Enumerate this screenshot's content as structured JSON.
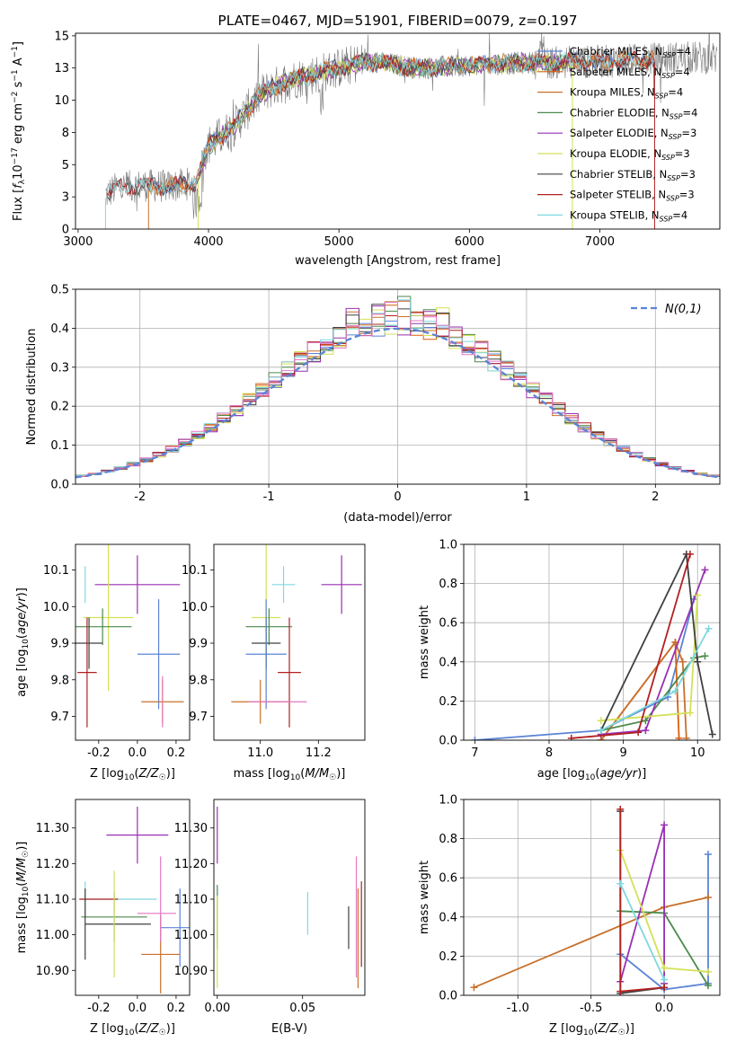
{
  "colors": {
    "Chabrier MILES": "#5b84d6",
    "Salpeter MILES": "#d95f0e",
    "Kroupa MILES": "#c8702a",
    "Chabrier ELODIE": "#4c8a4c",
    "Salpeter ELODIE": "#9a2fb5",
    "Kroupa ELODIE": "#d4e157",
    "Chabrier STELIB": "#404040",
    "Salpeter STELIB": "#b22020",
    "Kroupa STELIB": "#7fd8e0",
    "pink": "#e377c2",
    "gaussian": "#5b84d6"
  },
  "chart_data": [
    {
      "id": "spectrum",
      "type": "line",
      "title": "PLATE=0467, MJD=51901, FIBERID=0079, z=0.197",
      "xlabel": "wavelength [Angstrom, rest frame]",
      "ylabel": "Flux [f_λ 10^-17 erg cm^-2 s^-1 A^-1]",
      "xlim": [
        2980,
        7920
      ],
      "ylim": [
        0,
        15.2
      ],
      "xticks": [
        3000,
        4000,
        5000,
        6000,
        7000
      ],
      "yticks": [
        0.0,
        2.5,
        5.0,
        7.5,
        10.0,
        12.5,
        15.0
      ],
      "legend_position": "top-right",
      "legend": [
        {
          "name": "Chabrier MILES",
          "nssp": "4"
        },
        {
          "name": "Salpeter MILES",
          "nssp": "4"
        },
        {
          "name": "Kroupa MILES",
          "nssp": "4"
        },
        {
          "name": "Chabrier ELODIE",
          "nssp": "4"
        },
        {
          "name": "Salpeter ELODIE",
          "nssp": "3"
        },
        {
          "name": "Kroupa ELODIE",
          "nssp": "3"
        },
        {
          "name": "Chabrier STELIB",
          "nssp": "3"
        },
        {
          "name": "Salpeter STELIB",
          "nssp": "3"
        },
        {
          "name": "Kroupa STELIB",
          "nssp": "4"
        }
      ],
      "continuum": {
        "x": [
          3200,
          3300,
          3500,
          3700,
          3900,
          4000,
          4200,
          4400,
          4600,
          4800,
          5000,
          5200,
          5400,
          5600,
          5800,
          6000,
          6200,
          6400,
          6600,
          6800,
          7000,
          7200,
          7400,
          7600,
          7900
        ],
        "y": [
          2.6,
          3.2,
          3.4,
          3.3,
          3.6,
          6.5,
          8.0,
          10.5,
          11.5,
          12.0,
          12.5,
          13.0,
          12.8,
          12.5,
          12.6,
          12.7,
          12.8,
          12.9,
          12.9,
          13.0,
          13.0,
          13.1,
          13.2,
          13.3,
          13.3
        ]
      }
    },
    {
      "id": "residuals",
      "type": "line",
      "xlabel": "(data-model)/error",
      "ylabel": "Normed distribution",
      "xlim": [
        -2.5,
        2.5
      ],
      "ylim": [
        0,
        0.5
      ],
      "xticks": [
        -2,
        -1,
        0,
        1,
        2
      ],
      "yticks": [
        0.0,
        0.1,
        0.2,
        0.3,
        0.4,
        0.5
      ],
      "grid": true,
      "legend_position": "top-right",
      "gaussian_label": "N(0,1)",
      "bin_width": 0.1
    },
    {
      "id": "age_vs_Z",
      "type": "scatter",
      "xlabel": "Z [log10(Z/Z☉)]",
      "ylabel": "age  [log10(age/yr)]",
      "xlim": [
        -0.32,
        0.27
      ],
      "ylim": [
        9.635,
        10.17
      ],
      "xticks": [
        -0.2,
        0.0,
        0.2
      ],
      "yticks": [
        9.7,
        9.8,
        9.9,
        10.0,
        10.1
      ],
      "points": [
        {
          "series": "Kroupa STELIB",
          "x": -0.27,
          "y": 10.06,
          "xerr": 0.0,
          "yerr": 0.05
        },
        {
          "series": "Salpeter ELODIE",
          "x": 0.0,
          "y": 10.06,
          "xerr": 0.22,
          "yerr": 0.08
        },
        {
          "series": "Kroupa ELODIE",
          "x": -0.15,
          "y": 9.97,
          "xerr": 0.13,
          "yerr": 0.2
        },
        {
          "series": "Chabrier ELODIE",
          "x": -0.18,
          "y": 9.945,
          "xerr": 0.15,
          "yerr": 0.05
        },
        {
          "series": "Chabrier STELIB",
          "x": -0.25,
          "y": 9.9,
          "xerr": 0.07,
          "yerr": 0.07
        },
        {
          "series": "Chabrier MILES",
          "x": 0.11,
          "y": 9.87,
          "xerr": 0.11,
          "yerr": 0.15
        },
        {
          "series": "Salpeter STELIB",
          "x": -0.26,
          "y": 9.82,
          "xerr": 0.05,
          "yerr": 0.15
        },
        {
          "series": "Kroupa MILES",
          "x": 0.13,
          "y": 9.74,
          "xerr": 0.11,
          "yerr": 0.06
        },
        {
          "series": "pink",
          "x": 0.13,
          "y": 9.74,
          "xerr": 0.0,
          "yerr": 0.07
        }
      ]
    },
    {
      "id": "age_vs_mass",
      "type": "scatter",
      "xlabel": "mass [log10(M/M☉)]",
      "ylabel": "",
      "xlim": [
        10.84,
        11.36
      ],
      "ylim": [
        9.635,
        10.17
      ],
      "xticks": [
        11.0,
        11.2
      ],
      "yticks": [
        9.7,
        9.8,
        9.9,
        10.0,
        10.1
      ],
      "points": [
        {
          "series": "Kroupa STELIB",
          "x": 11.08,
          "y": 10.06,
          "xerr": 0.04,
          "yerr": 0.05
        },
        {
          "series": "Salpeter ELODIE",
          "x": 11.28,
          "y": 10.06,
          "xerr": 0.07,
          "yerr": 0.08
        },
        {
          "series": "Kroupa ELODIE",
          "x": 11.02,
          "y": 9.97,
          "xerr": 0.05,
          "yerr": 0.2
        },
        {
          "series": "Chabrier ELODIE",
          "x": 11.03,
          "y": 9.945,
          "xerr": 0.08,
          "yerr": 0.05
        },
        {
          "series": "Chabrier STELIB",
          "x": 11.02,
          "y": 9.9,
          "xerr": 0.05,
          "yerr": 0.07
        },
        {
          "series": "Chabrier MILES",
          "x": 11.02,
          "y": 9.87,
          "xerr": 0.07,
          "yerr": 0.15
        },
        {
          "series": "Salpeter STELIB",
          "x": 11.1,
          "y": 9.82,
          "xerr": 0.04,
          "yerr": 0.15
        },
        {
          "series": "Kroupa MILES",
          "x": 11.0,
          "y": 9.74,
          "xerr": 0.1,
          "yerr": 0.06
        },
        {
          "series": "pink",
          "x": 11.06,
          "y": 9.74,
          "xerr": 0.1,
          "yerr": 0.0
        }
      ]
    },
    {
      "id": "weight_vs_age",
      "type": "line",
      "xlabel": "age  [log10(age/yr)]",
      "ylabel": "mass weight",
      "xlim": [
        6.85,
        10.3
      ],
      "ylim": [
        0,
        1.0
      ],
      "xticks": [
        7,
        8,
        9,
        10
      ],
      "yticks": [
        0.0,
        0.2,
        0.4,
        0.6,
        0.8,
        1.0
      ],
      "grid": true,
      "series": [
        {
          "name": "Chabrier MILES",
          "x": [
            7.0,
            8.7,
            9.6,
            9.95
          ],
          "y": [
            0.0,
            0.05,
            0.22,
            0.72
          ]
        },
        {
          "name": "Salpeter MILES",
          "x": [
            8.7,
            9.7,
            9.75
          ],
          "y": [
            0.0,
            0.5,
            0.01
          ]
        },
        {
          "name": "Kroupa MILES",
          "x": [
            8.7,
            9.7,
            9.8,
            9.85
          ],
          "y": [
            0.0,
            0.5,
            0.4,
            0.01
          ]
        },
        {
          "name": "Chabrier ELODIE",
          "x": [
            8.7,
            9.3,
            9.95,
            10.1
          ],
          "y": [
            0.05,
            0.1,
            0.42,
            0.43
          ]
        },
        {
          "name": "Salpeter ELODIE",
          "x": [
            8.7,
            9.3,
            10.1
          ],
          "y": [
            0.03,
            0.05,
            0.87
          ]
        },
        {
          "name": "Kroupa ELODIE",
          "x": [
            8.7,
            9.9,
            10.0
          ],
          "y": [
            0.1,
            0.14,
            0.74
          ]
        },
        {
          "name": "Chabrier STELIB",
          "x": [
            8.7,
            9.85,
            10.0,
            10.2
          ],
          "y": [
            0.05,
            0.95,
            0.4,
            0.03
          ]
        },
        {
          "name": "Salpeter STELIB",
          "x": [
            8.3,
            9.2,
            9.9
          ],
          "y": [
            0.01,
            0.04,
            0.95
          ]
        },
        {
          "name": "Kroupa STELIB",
          "x": [
            8.7,
            9.7,
            10.15
          ],
          "y": [
            0.05,
            0.25,
            0.57
          ]
        }
      ]
    },
    {
      "id": "mass_vs_Z",
      "type": "scatter",
      "xlabel": "Z [log10(Z/Z☉)]",
      "ylabel": "mass [log10(M/M☉)]",
      "xlim": [
        -0.32,
        0.27
      ],
      "ylim": [
        10.83,
        11.38
      ],
      "xticks": [
        -0.2,
        0.0,
        0.2
      ],
      "yticks": [
        10.9,
        11.0,
        11.1,
        11.2,
        11.3
      ],
      "points": [
        {
          "series": "Salpeter ELODIE",
          "x": 0.0,
          "y": 11.28,
          "xerr": 0.16,
          "yerr": 0.08
        },
        {
          "series": "Kroupa STELIB",
          "x": -0.27,
          "y": 11.1,
          "xerr": 0.0,
          "yerr": 0.05
        },
        {
          "series": "Kroupa STELIB",
          "x": -0.1,
          "y": 11.1,
          "xerr": 0.2,
          "yerr": 0.0
        },
        {
          "series": "Salpeter STELIB",
          "x": -0.2,
          "y": 11.1,
          "xerr": 0.1,
          "yerr": 0.0
        },
        {
          "series": "Chabrier ELODIE",
          "x": -0.12,
          "y": 11.05,
          "xerr": 0.17,
          "yerr": 0.07
        },
        {
          "series": "Chabrier STELIB",
          "x": -0.27,
          "y": 11.03,
          "xerr": 0.0,
          "yerr": 0.1
        },
        {
          "series": "Chabrier STELIB",
          "x": -0.1,
          "y": 11.03,
          "xerr": 0.17,
          "yerr": 0.0
        },
        {
          "series": "Kroupa ELODIE",
          "x": -0.12,
          "y": 11.03,
          "xerr": 0.0,
          "yerr": 0.15
        },
        {
          "series": "pink",
          "x": 0.1,
          "y": 11.06,
          "xerr": 0.1,
          "yerr": 0.0
        },
        {
          "series": "Chabrier MILES",
          "x": 0.22,
          "y": 11.02,
          "xerr": 0.1,
          "yerr": 0.11
        },
        {
          "series": "Kroupa MILES",
          "x": 0.12,
          "y": 10.945,
          "xerr": 0.1,
          "yerr": 0.11
        },
        {
          "series": "pink",
          "x": 0.12,
          "y": 11.1,
          "xerr": 0.0,
          "yerr": 0.12
        }
      ]
    },
    {
      "id": "mass_vs_ebv",
      "type": "scatter",
      "xlabel": "E(B-V)",
      "ylabel": "",
      "xlim": [
        -0.002,
        0.0865
      ],
      "ylim": [
        10.83,
        11.38
      ],
      "xticks": [
        0.0,
        0.05
      ],
      "yticks": [
        10.9,
        11.0,
        11.1,
        11.2,
        11.3
      ],
      "points": [
        {
          "series": "Salpeter ELODIE",
          "x": 0.0,
          "y": 11.28,
          "xerr": 0.0,
          "yerr": 0.08
        },
        {
          "series": "Chabrier ELODIE",
          "x": 0.0,
          "y": 11.05,
          "xerr": 0.0,
          "yerr": 0.09
        },
        {
          "series": "Kroupa ELODIE",
          "x": 0.0,
          "y": 10.98,
          "xerr": 0.0,
          "yerr": 0.13
        },
        {
          "series": "Kroupa STELIB",
          "x": 0.053,
          "y": 11.06,
          "xerr": 0.0,
          "yerr": 0.06
        },
        {
          "series": "Chabrier STELIB",
          "x": 0.077,
          "y": 11.02,
          "xerr": 0.0,
          "yerr": 0.06
        },
        {
          "series": "pink",
          "x": 0.0815,
          "y": 11.05,
          "xerr": 0.0,
          "yerr": 0.17
        },
        {
          "series": "Kroupa MILES",
          "x": 0.0825,
          "y": 10.99,
          "xerr": 0.0,
          "yerr": 0.14
        },
        {
          "series": "Salpeter STELIB",
          "x": 0.0845,
          "y": 11.03,
          "xerr": 0.0,
          "yerr": 0.12
        }
      ]
    },
    {
      "id": "weight_vs_Z",
      "type": "line",
      "xlabel": "Z [log10(Z/Z☉)]",
      "ylabel": "mass weight",
      "xlim": [
        -1.37,
        0.38
      ],
      "ylim": [
        0,
        1.0
      ],
      "xticks": [
        -1.0,
        -0.5,
        0.0
      ],
      "yticks": [
        0.0,
        0.2,
        0.4,
        0.6,
        0.8,
        1.0
      ],
      "grid": true,
      "series": [
        {
          "name": "Chabrier MILES",
          "x": [
            -0.3,
            0.0,
            0.3,
            0.3
          ],
          "y": [
            0.21,
            0.03,
            0.06,
            0.72
          ]
        },
        {
          "name": "Kroupa MILES",
          "x": [
            -1.3,
            0.0,
            0.3
          ],
          "y": [
            0.04,
            0.45,
            0.5
          ]
        },
        {
          "name": "Chabrier ELODIE",
          "x": [
            -0.3,
            0.0,
            0.3
          ],
          "y": [
            0.43,
            0.42,
            0.05
          ]
        },
        {
          "name": "Salpeter ELODIE",
          "x": [
            -0.3,
            0.0,
            0.0
          ],
          "y": [
            0.07,
            0.87,
            0.06
          ]
        },
        {
          "name": "Kroupa ELODIE",
          "x": [
            -0.3,
            0.0,
            0.3
          ],
          "y": [
            0.74,
            0.14,
            0.12
          ]
        },
        {
          "name": "Chabrier STELIB",
          "x": [
            -0.3,
            -0.3,
            0.0
          ],
          "y": [
            0.94,
            0.01,
            0.04
          ]
        },
        {
          "name": "Salpeter STELIB",
          "x": [
            -0.3,
            -0.3,
            0.0
          ],
          "y": [
            0.95,
            0.02,
            0.04
          ]
        },
        {
          "name": "Kroupa STELIB",
          "x": [
            -0.3,
            0.0
          ],
          "y": [
            0.57,
            0.08
          ]
        }
      ]
    }
  ]
}
